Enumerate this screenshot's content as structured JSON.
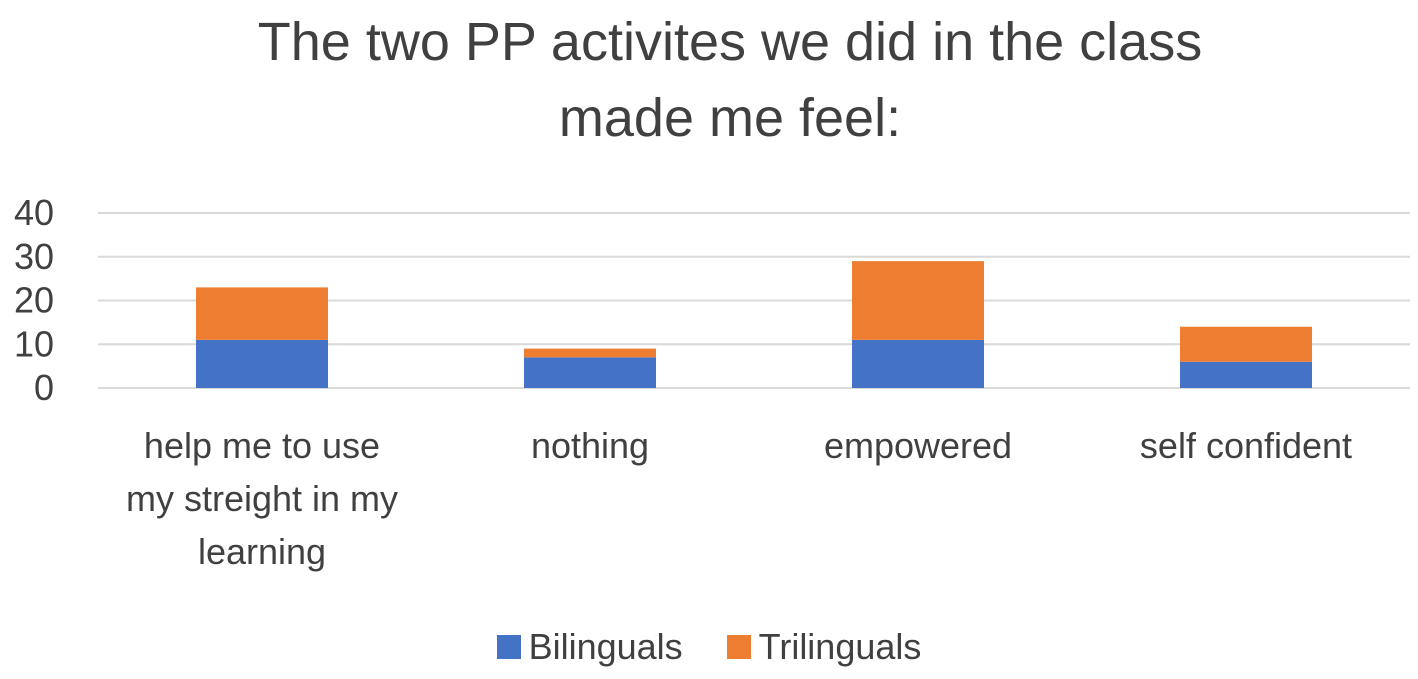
{
  "chart_data": {
    "type": "bar",
    "stacked": true,
    "title": "The two PP activites we did in the class made me feel:",
    "categories": [
      [
        "help me to use",
        "my streight in my",
        "learning"
      ],
      [
        "nothing"
      ],
      [
        "empowered"
      ],
      [
        "self confident"
      ]
    ],
    "series": [
      {
        "name": "Bilinguals",
        "color": "#4472C4",
        "values": [
          11,
          7,
          11,
          6
        ]
      },
      {
        "name": "Trilinguals",
        "color": "#ED7D31",
        "values": [
          12,
          2,
          18,
          8
        ]
      }
    ],
    "ylim": [
      0,
      40
    ],
    "yticks": [
      0,
      10,
      20,
      30,
      40
    ],
    "grid": true,
    "legend_position": "bottom"
  }
}
